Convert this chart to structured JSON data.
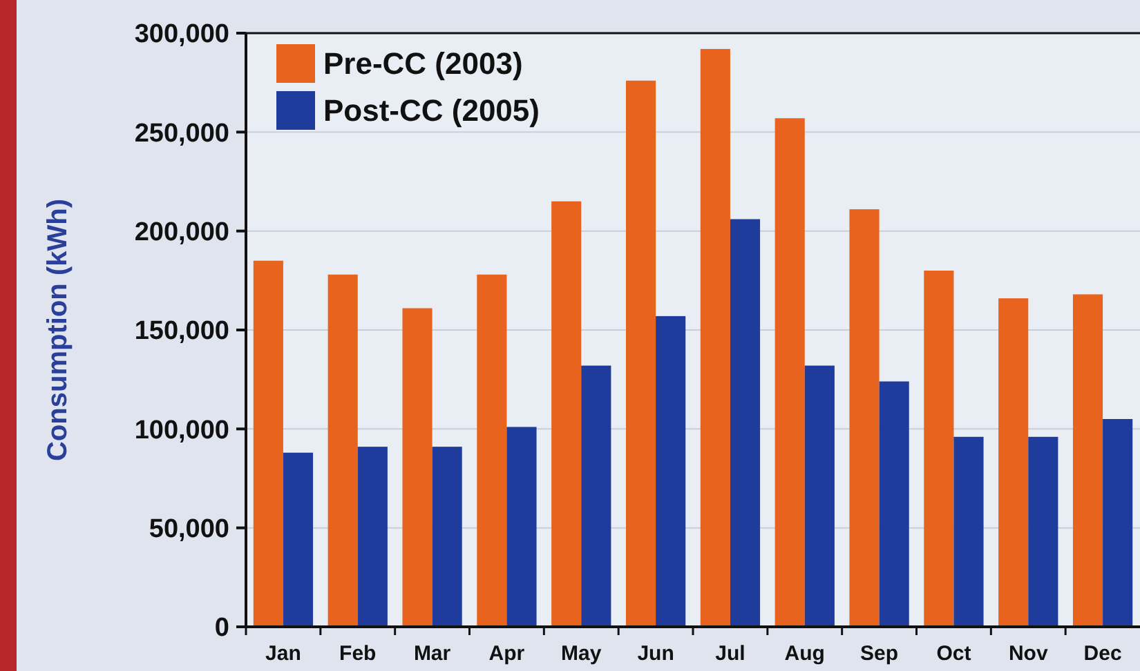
{
  "chart_data": {
    "type": "bar",
    "ylabel": "Consumption (kWh)",
    "categories": [
      "Jan",
      "Feb",
      "Mar",
      "Apr",
      "May",
      "Jun",
      "Jul",
      "Aug",
      "Sep",
      "Oct",
      "Nov",
      "Dec"
    ],
    "series": [
      {
        "name": "Pre-CC (2003)",
        "color": "#e8641e",
        "values": [
          185000,
          178000,
          161000,
          178000,
          215000,
          276000,
          292000,
          257000,
          211000,
          180000,
          166000,
          168000
        ]
      },
      {
        "name": "Post-CC (2005)",
        "color": "#1f3c9c",
        "values": [
          88000,
          91000,
          91000,
          101000,
          132000,
          157000,
          206000,
          132000,
          124000,
          96000,
          96000,
          105000
        ]
      }
    ],
    "ylim": [
      0,
      300000
    ],
    "yticks": [
      {
        "value": 0,
        "label": "0"
      },
      {
        "value": 50000,
        "label": "50,000"
      },
      {
        "value": 100000,
        "label": "100,000"
      },
      {
        "value": 150000,
        "label": "150,000"
      },
      {
        "value": 200000,
        "label": "200,000"
      },
      {
        "value": 250000,
        "label": "250,000"
      },
      {
        "value": 300000,
        "label": "300,000"
      }
    ],
    "grid": "y",
    "legend": "top left"
  }
}
